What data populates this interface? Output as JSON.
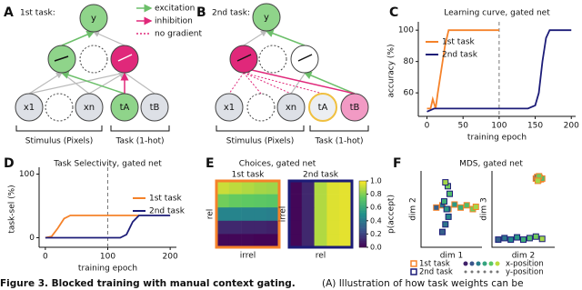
{
  "diagram_a": {
    "label": "A",
    "title": "1st task:",
    "nodes": [
      "y",
      "x1",
      "xn",
      "tA",
      "tB"
    ],
    "legend": [
      "excitation",
      "inhibition",
      "no gradient"
    ],
    "groups": [
      "Stimulus (Pixels)",
      "Task (1-hot)"
    ]
  },
  "diagram_b": {
    "label": "B",
    "title": "2nd task:",
    "nodes": [
      "y",
      "x1",
      "xn",
      "tA",
      "tB"
    ],
    "groups": [
      "Stimulus (Pixels)",
      "Task (1-hot)"
    ]
  },
  "chart_data": [
    {
      "type": "line",
      "label": "C",
      "title": "Learning curve, gated net",
      "x_label": "training epoch",
      "y_label": "accuracy (%)",
      "xlim": [
        -12,
        206
      ],
      "ylim": [
        45,
        103
      ],
      "xticks": [
        0,
        50,
        100,
        150,
        200
      ],
      "yticks": [
        60,
        80,
        100
      ],
      "vline": 100,
      "legend": "upper left",
      "series": [
        {
          "name": "1st task",
          "color": "#f5822a",
          "x": [
            0,
            5,
            8,
            12,
            15,
            20,
            25,
            30,
            40,
            100
          ],
          "values": [
            50,
            50,
            56,
            50,
            60,
            75,
            90,
            100,
            100,
            100
          ]
        },
        {
          "name": "2nd task",
          "color": "#1c1c78",
          "x": [
            0,
            10,
            50,
            100,
            140,
            150,
            155,
            160,
            165,
            170,
            200
          ],
          "values": [
            48,
            50,
            50,
            50,
            50,
            52,
            60,
            80,
            95,
            100,
            100
          ]
        }
      ]
    },
    {
      "type": "line",
      "label": "D",
      "title": "Task Selectivity, gated net",
      "x_label": "training epoch",
      "y_label": "task-sel (%)",
      "xlim": [
        -10,
        210
      ],
      "ylim": [
        -15,
        105
      ],
      "xticks": [
        0,
        100,
        200
      ],
      "yticks": [
        0,
        100
      ],
      "vline": 100,
      "legend": "center right",
      "series": [
        {
          "name": "1st task",
          "color": "#f5822a",
          "x": [
            0,
            10,
            20,
            30,
            40,
            150
          ],
          "values": [
            0,
            2,
            15,
            30,
            35,
            35
          ]
        },
        {
          "name": "2nd task",
          "color": "#1c1c78",
          "x": [
            0,
            120,
            130,
            140,
            150,
            200
          ],
          "values": [
            0,
            0,
            5,
            25,
            35,
            35
          ]
        }
      ]
    },
    {
      "type": "heatmap",
      "label": "E",
      "title": "Choices, gated net",
      "colorbar_label": "p(accept)",
      "clim": [
        0,
        1
      ],
      "cticks": [
        {
          "value": 1,
          "label": "1.0"
        },
        0.8,
        0.6,
        0.4,
        0.2,
        {
          "value": 0,
          "label": "0.0"
        }
      ],
      "panels": [
        {
          "name": "1st task",
          "color": "#f5822a",
          "y_label": "rel",
          "x_label": "irrel",
          "values": [
            [
              0.92,
              0.9,
              0.88,
              0.86,
              0.85
            ],
            [
              0.78,
              0.76,
              0.75,
              0.74,
              0.73
            ],
            [
              0.45,
              0.45,
              0.44,
              0.44,
              0.43
            ],
            [
              0.12,
              0.12,
              0.11,
              0.11,
              0.1
            ],
            [
              0.02,
              0.02,
              0.02,
              0.01,
              0.01
            ]
          ]
        },
        {
          "name": "2nd task",
          "color": "#1c1c78",
          "y_label": "irrel",
          "x_label": "rel",
          "values": [
            [
              0.02,
              0.12,
              0.88,
              0.95,
              0.96
            ],
            [
              0.02,
              0.12,
              0.88,
              0.95,
              0.96
            ],
            [
              0.02,
              0.12,
              0.88,
              0.95,
              0.96
            ],
            [
              0.02,
              0.12,
              0.88,
              0.95,
              0.96
            ],
            [
              0.02,
              0.12,
              0.88,
              0.95,
              0.96
            ]
          ]
        }
      ]
    },
    {
      "type": "scatter",
      "label": "F",
      "title": "MDS, gated net",
      "series": [
        {
          "name": "1st task",
          "color": "#f5822a"
        },
        {
          "name": "2nd task",
          "color": "#1c1c78"
        }
      ],
      "encodings": [
        "x-position",
        "y-position"
      ],
      "panels": [
        {
          "x_label": "dim 1",
          "y_label": "dim 2",
          "xlim": [
            0,
            1
          ],
          "ylim": [
            0,
            1
          ],
          "points": [
            {
              "x": [
                0.25,
                0.35,
                0.45,
                0.55,
                0.65,
                0.75,
                0.85,
                0.9
              ],
              "values": [
                0.52,
                0.55,
                0.5,
                0.56,
                0.52,
                0.55,
                0.5,
                0.53
              ]
            },
            {
              "x": [
                0.35,
                0.4,
                0.45,
                0.42,
                0.38,
                0.47,
                0.44,
                0.4
              ],
              "values": [
                0.2,
                0.3,
                0.4,
                0.5,
                0.6,
                0.7,
                0.8,
                0.85
              ]
            }
          ]
        },
        {
          "x_label": "dim 2",
          "y_label": "dim 3",
          "xlim": [
            0,
            1
          ],
          "ylim": [
            0,
            1
          ],
          "points": [
            {
              "x": [
                0.7,
                0.72,
                0.74,
                0.76,
                0.78,
                0.8,
                0.75,
                0.73
              ],
              "values": [
                0.9,
                0.92,
                0.88,
                0.91,
                0.89,
                0.9,
                0.93,
                0.87
              ]
            },
            {
              "x": [
                0.1,
                0.2,
                0.3,
                0.4,
                0.5,
                0.6,
                0.7,
                0.8
              ],
              "values": [
                0.1,
                0.12,
                0.1,
                0.13,
                0.1,
                0.12,
                0.14,
                0.11
              ]
            }
          ]
        }
      ]
    }
  ],
  "caption": {
    "title": "Figure 3. Blocked training with manual context gating.",
    "text": "(A) Illustration of how task weights can be"
  }
}
